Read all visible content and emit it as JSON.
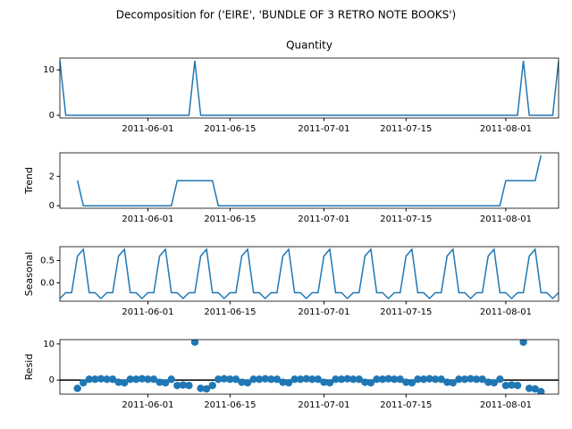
{
  "title": "Decomposition for ('EIRE', 'BUNDLE OF 3 RETRO NOTE BOOKS')",
  "x": [
    "2011-05-17",
    "2011-05-18",
    "2011-05-19",
    "2011-05-20",
    "2011-05-21",
    "2011-05-22",
    "2011-05-23",
    "2011-05-24",
    "2011-05-25",
    "2011-05-26",
    "2011-05-27",
    "2011-05-28",
    "2011-05-29",
    "2011-05-30",
    "2011-05-31",
    "2011-06-01",
    "2011-06-02",
    "2011-06-03",
    "2011-06-04",
    "2011-06-05",
    "2011-06-06",
    "2011-06-07",
    "2011-06-08",
    "2011-06-09",
    "2011-06-10",
    "2011-06-11",
    "2011-06-12",
    "2011-06-13",
    "2011-06-14",
    "2011-06-15",
    "2011-06-16",
    "2011-06-17",
    "2011-06-18",
    "2011-06-19",
    "2011-06-20",
    "2011-06-21",
    "2011-06-22",
    "2011-06-23",
    "2011-06-24",
    "2011-06-25",
    "2011-06-26",
    "2011-06-27",
    "2011-06-28",
    "2011-06-29",
    "2011-06-30",
    "2011-07-01",
    "2011-07-02",
    "2011-07-03",
    "2011-07-04",
    "2011-07-05",
    "2011-07-06",
    "2011-07-07",
    "2011-07-08",
    "2011-07-09",
    "2011-07-10",
    "2011-07-11",
    "2011-07-12",
    "2011-07-13",
    "2011-07-14",
    "2011-07-15",
    "2011-07-16",
    "2011-07-17",
    "2011-07-18",
    "2011-07-19",
    "2011-07-20",
    "2011-07-21",
    "2011-07-22",
    "2011-07-23",
    "2011-07-24",
    "2011-07-25",
    "2011-07-26",
    "2011-07-27",
    "2011-07-28",
    "2011-07-29",
    "2011-07-30",
    "2011-07-31",
    "2011-08-01",
    "2011-08-02",
    "2011-08-03",
    "2011-08-04",
    "2011-08-05",
    "2011-08-06",
    "2011-08-07",
    "2011-08-08",
    "2011-08-09",
    "2011-08-10"
  ],
  "xlim": [
    "2011-05-17",
    "2011-08-10"
  ],
  "xticks": [
    "2011-06-01",
    "2011-06-15",
    "2011-07-01",
    "2011-07-15",
    "2011-08-01"
  ],
  "chart_data": [
    {
      "type": "line",
      "title": "Quantity",
      "color": "#1f77b4",
      "ylim": [
        -0.6,
        12.6
      ],
      "yticks": [
        0,
        10
      ],
      "values": [
        12,
        0,
        0,
        0,
        0,
        0,
        0,
        0,
        0,
        0,
        0,
        0,
        0,
        0,
        0,
        0,
        0,
        0,
        0,
        0,
        0,
        0,
        0,
        12,
        0,
        0,
        0,
        0,
        0,
        0,
        0,
        0,
        0,
        0,
        0,
        0,
        0,
        0,
        0,
        0,
        0,
        0,
        0,
        0,
        0,
        0,
        0,
        0,
        0,
        0,
        0,
        0,
        0,
        0,
        0,
        0,
        0,
        0,
        0,
        0,
        0,
        0,
        0,
        0,
        0,
        0,
        0,
        0,
        0,
        0,
        0,
        0,
        0,
        0,
        0,
        0,
        0,
        0,
        0,
        12,
        0,
        0,
        0,
        0,
        0,
        12
      ]
    },
    {
      "type": "line",
      "ylabel": "Trend",
      "color": "#1f77b4",
      "ylim": [
        -0.17,
        3.6
      ],
      "yticks": [
        0,
        2
      ],
      "values": [
        null,
        null,
        null,
        1.71,
        0,
        0,
        0,
        0,
        0,
        0,
        0,
        0,
        0,
        0,
        0,
        0,
        0,
        0,
        0,
        0,
        1.71,
        1.71,
        1.71,
        1.71,
        1.71,
        1.71,
        1.71,
        0,
        0,
        0,
        0,
        0,
        0,
        0,
        0,
        0,
        0,
        0,
        0,
        0,
        0,
        0,
        0,
        0,
        0,
        0,
        0,
        0,
        0,
        0,
        0,
        0,
        0,
        0,
        0,
        0,
        0,
        0,
        0,
        0,
        0,
        0,
        0,
        0,
        0,
        0,
        0,
        0,
        0,
        0,
        0,
        0,
        0,
        0,
        0,
        0,
        1.71,
        1.71,
        1.71,
        1.71,
        1.71,
        1.71,
        3.43,
        null,
        null,
        null
      ]
    },
    {
      "type": "line",
      "ylabel": "Seasonal",
      "color": "#1f77b4",
      "ylim": [
        -0.41,
        0.81
      ],
      "yticks": [
        {
          "value": 0,
          "label": "0.0"
        },
        0.5
      ],
      "values": [
        -0.35,
        -0.22,
        -0.22,
        0.6,
        0.75,
        -0.22,
        -0.22,
        -0.35,
        -0.22,
        -0.22,
        0.6,
        0.75,
        -0.22,
        -0.22,
        -0.35,
        -0.22,
        -0.22,
        0.6,
        0.75,
        -0.22,
        -0.22,
        -0.35,
        -0.22,
        -0.22,
        0.6,
        0.75,
        -0.22,
        -0.22,
        -0.35,
        -0.22,
        -0.22,
        0.6,
        0.75,
        -0.22,
        -0.22,
        -0.35,
        -0.22,
        -0.22,
        0.6,
        0.75,
        -0.22,
        -0.22,
        -0.35,
        -0.22,
        -0.22,
        0.6,
        0.75,
        -0.22,
        -0.22,
        -0.35,
        -0.22,
        -0.22,
        0.6,
        0.75,
        -0.22,
        -0.22,
        -0.35,
        -0.22,
        -0.22,
        0.6,
        0.75,
        -0.22,
        -0.22,
        -0.35,
        -0.22,
        -0.22,
        0.6,
        0.75,
        -0.22,
        -0.22,
        -0.35,
        -0.22,
        -0.22,
        0.6,
        0.75,
        -0.22,
        -0.22,
        -0.35,
        -0.22,
        -0.22,
        0.6,
        0.75,
        -0.22,
        -0.22,
        -0.35,
        -0.22
      ]
    },
    {
      "type": "scatter",
      "ylabel": "Resid",
      "color": "#1f77b4",
      "ylim": [
        -3.9,
        11.2
      ],
      "yticks": [
        0,
        10
      ],
      "hline": 0,
      "values": [
        null,
        null,
        null,
        -2.31,
        -0.75,
        0.22,
        0.22,
        0.35,
        0.22,
        0.22,
        -0.6,
        -0.75,
        0.22,
        0.22,
        0.35,
        0.22,
        0.22,
        -0.6,
        -0.75,
        0.22,
        -1.49,
        -1.36,
        -1.49,
        10.51,
        -2.31,
        -2.46,
        -1.49,
        0.22,
        0.35,
        0.22,
        0.22,
        -0.6,
        -0.75,
        0.22,
        0.22,
        0.35,
        0.22,
        0.22,
        -0.6,
        -0.75,
        0.22,
        0.22,
        0.35,
        0.22,
        0.22,
        -0.6,
        -0.75,
        0.22,
        0.22,
        0.35,
        0.22,
        0.22,
        -0.6,
        -0.75,
        0.22,
        0.22,
        0.35,
        0.22,
        0.22,
        -0.6,
        -0.75,
        0.22,
        0.22,
        0.35,
        0.22,
        0.22,
        -0.6,
        -0.75,
        0.22,
        0.22,
        0.35,
        0.22,
        0.22,
        -0.6,
        -0.75,
        0.22,
        -1.49,
        -1.36,
        -1.49,
        10.51,
        -2.31,
        -2.46,
        -3.21,
        null,
        null,
        null
      ]
    }
  ]
}
